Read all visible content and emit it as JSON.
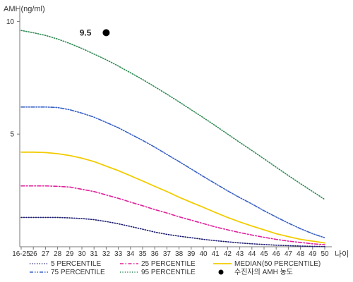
{
  "chart_data": {
    "type": "line",
    "title": "",
    "ylabel": "AMH(ng/ml)",
    "xlabel": "나이",
    "x_tick_labels": [
      "16-25",
      "26",
      "27",
      "28",
      "29",
      "30",
      "31",
      "32",
      "33",
      "34",
      "35",
      "36",
      "37",
      "38",
      "39",
      "40",
      "41",
      "42",
      "43",
      "44",
      "45",
      "46",
      "47",
      "48",
      "49",
      "50"
    ],
    "y_tick_labels": [
      "10",
      "5"
    ],
    "ylim": [
      0,
      10.7
    ],
    "grid": false,
    "legend_position": "bottom",
    "x": [
      25,
      26,
      27,
      28,
      29,
      30,
      31,
      32,
      33,
      34,
      35,
      36,
      37,
      38,
      39,
      40,
      41,
      42,
      43,
      44,
      45,
      46,
      47,
      48,
      49,
      50
    ],
    "series": [
      {
        "name": "5 PERCENTILE",
        "color": "#1a1a6e",
        "dash": "dotted",
        "values": [
          1.3,
          1.3,
          1.3,
          1.3,
          1.28,
          1.25,
          1.2,
          1.12,
          1.02,
          0.9,
          0.78,
          0.65,
          0.55,
          0.47,
          0.4,
          0.33,
          0.27,
          0.22,
          0.17,
          0.13,
          0.1,
          0.07,
          0.05,
          0.03,
          0.02,
          0.01
        ]
      },
      {
        "name": "25 PERCENTILE",
        "color": "#e0219b",
        "dash": "dashdot",
        "values": [
          2.7,
          2.7,
          2.7,
          2.68,
          2.65,
          2.55,
          2.45,
          2.3,
          2.15,
          1.98,
          1.82,
          1.65,
          1.5,
          1.33,
          1.18,
          1.03,
          0.88,
          0.75,
          0.63,
          0.52,
          0.42,
          0.33,
          0.25,
          0.19,
          0.13,
          0.09
        ]
      },
      {
        "name": "MEDIAN(50 PERCENTILE)",
        "color": "#f2cc00",
        "dash": "solid",
        "values": [
          4.2,
          4.2,
          4.18,
          4.13,
          4.05,
          3.93,
          3.78,
          3.58,
          3.38,
          3.15,
          2.92,
          2.68,
          2.45,
          2.2,
          1.97,
          1.75,
          1.52,
          1.3,
          1.1,
          0.92,
          0.75,
          0.58,
          0.45,
          0.33,
          0.25,
          0.17
        ]
      },
      {
        "name": "75 PERCENTILE",
        "color": "#3a62c4",
        "dash": "dashdotdot",
        "values": [
          6.2,
          6.2,
          6.2,
          6.18,
          6.08,
          5.93,
          5.75,
          5.52,
          5.28,
          5.0,
          4.72,
          4.42,
          4.1,
          3.78,
          3.45,
          3.12,
          2.8,
          2.48,
          2.18,
          1.9,
          1.6,
          1.32,
          1.05,
          0.8,
          0.58,
          0.4
        ]
      },
      {
        "name": "95 PERCENTILE",
        "color": "#2f8a54",
        "dash": "dotted",
        "values": [
          9.6,
          9.5,
          9.38,
          9.22,
          9.02,
          8.8,
          8.55,
          8.3,
          8.02,
          7.72,
          7.42,
          7.1,
          6.77,
          6.43,
          6.08,
          5.73,
          5.37,
          5.0,
          4.63,
          4.27,
          3.9,
          3.53,
          3.16,
          2.8,
          2.45,
          2.1
        ]
      }
    ],
    "marker": {
      "name": "수진자의 AMH 농도",
      "x": 32,
      "y": 9.5,
      "label": "9.5",
      "color": "#000000"
    }
  }
}
